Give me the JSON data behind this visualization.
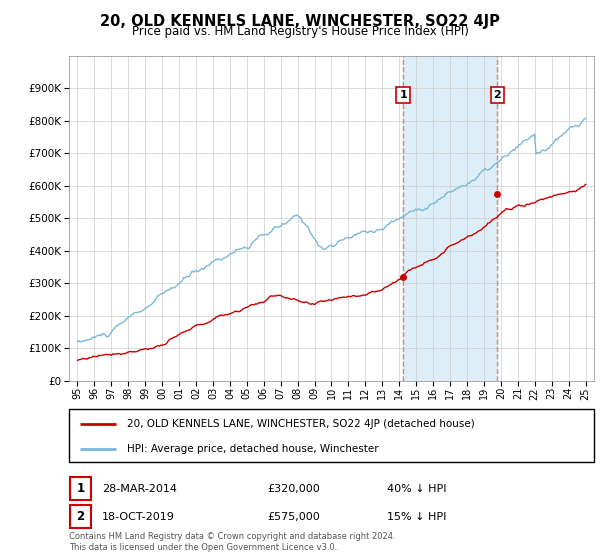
{
  "title": "20, OLD KENNELS LANE, WINCHESTER, SO22 4JP",
  "subtitle": "Price paid vs. HM Land Registry's House Price Index (HPI)",
  "legend_line1": "20, OLD KENNELS LANE, WINCHESTER, SO22 4JP (detached house)",
  "legend_line2": "HPI: Average price, detached house, Winchester",
  "transaction1_date": "28-MAR-2014",
  "transaction1_price": "£320,000",
  "transaction1_hpi": "40% ↓ HPI",
  "transaction2_date": "18-OCT-2019",
  "transaction2_price": "£575,000",
  "transaction2_hpi": "15% ↓ HPI",
  "footer": "Contains HM Land Registry data © Crown copyright and database right 2024.\nThis data is licensed under the Open Government Licence v3.0.",
  "hpi_color": "#7ab8d9",
  "price_color": "#cc0000",
  "vline_color": "#e08080",
  "highlight_color": "#ddeef8",
  "ylim": [
    0,
    1000000
  ],
  "yticks": [
    0,
    100000,
    200000,
    300000,
    400000,
    500000,
    600000,
    700000,
    800000,
    900000
  ],
  "xlim_start": 1994.5,
  "xlim_end": 2025.5,
  "t1_year": 2014.23,
  "t2_year": 2019.8,
  "t1_price": 320000,
  "t2_price": 575000,
  "hpi_seed": 10,
  "price_seed": 77
}
